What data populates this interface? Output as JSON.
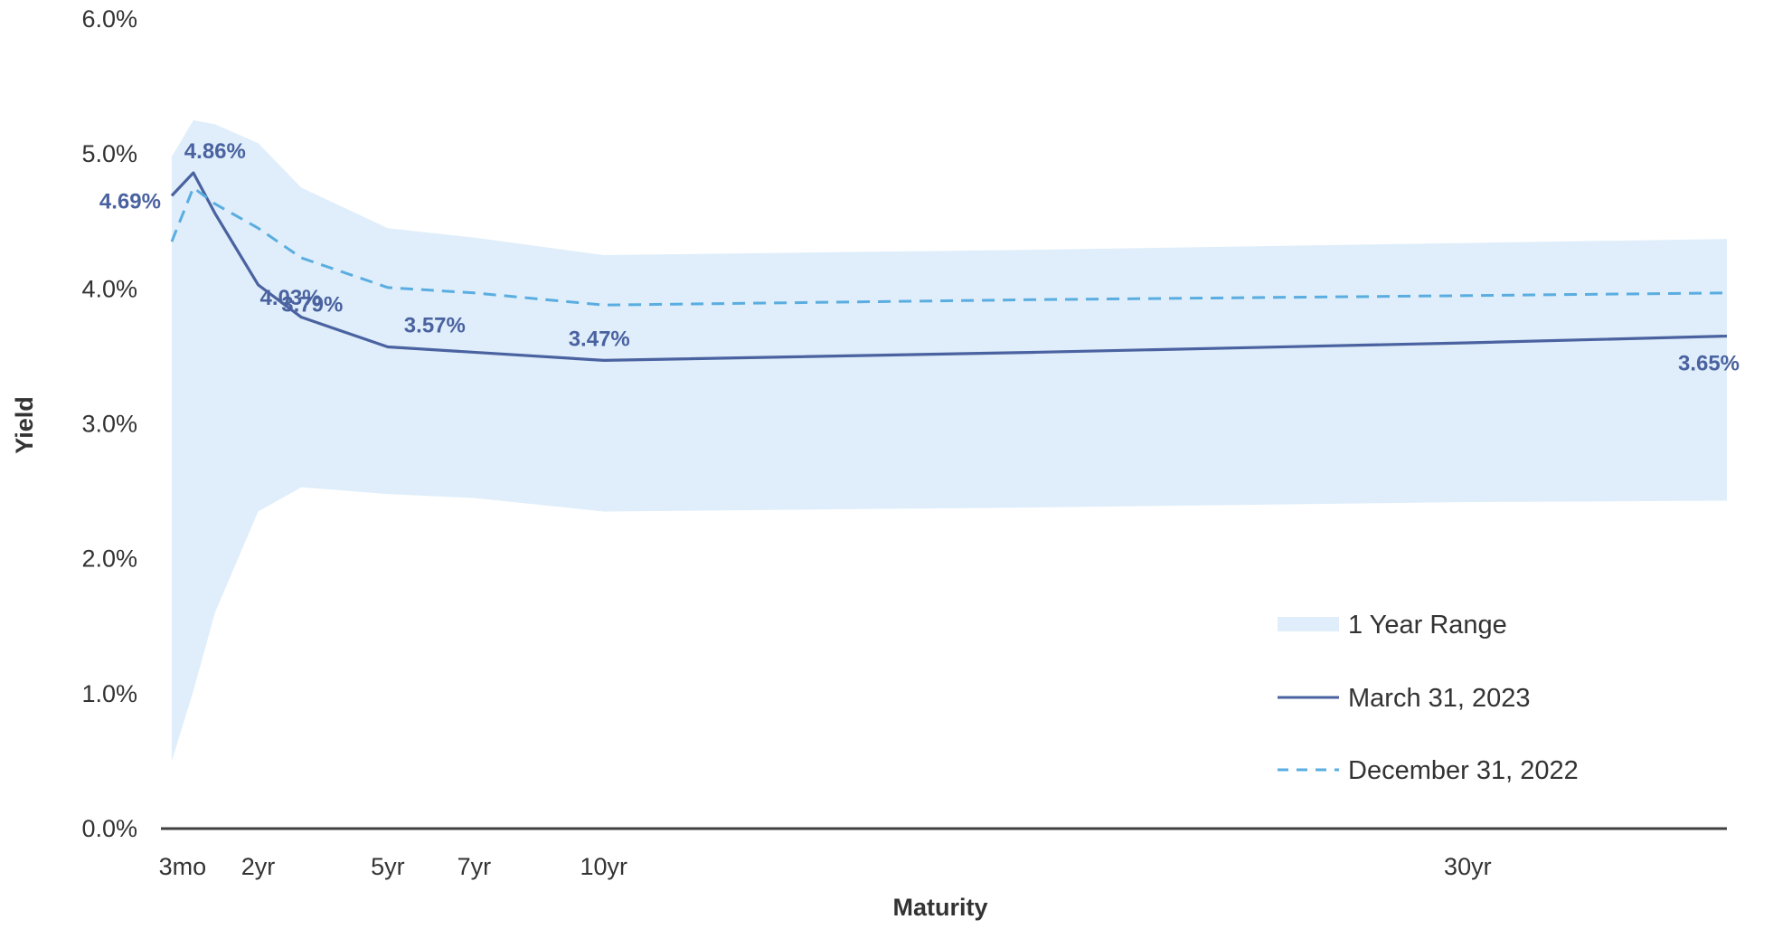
{
  "chart_data": {
    "type": "line",
    "title": "",
    "xlabel": "Maturity",
    "ylabel": "Yield",
    "ylim": [
      0,
      6
    ],
    "y_tick_labels": [
      "0.0%",
      "1.0%",
      "2.0%",
      "3.0%",
      "4.0%",
      "5.0%",
      "6.0%"
    ],
    "y_ticks": [
      0,
      1,
      2,
      3,
      4,
      5,
      6
    ],
    "x_tick_labels": [
      "3mo",
      "2yr",
      "5yr",
      "7yr",
      "10yr",
      "30yr"
    ],
    "x_tick_positions": [
      0.25,
      2,
      5,
      7,
      10,
      30
    ],
    "xlim": [
      -0.25,
      36
    ],
    "x": [
      0,
      0.5,
      1,
      2,
      3,
      5,
      7,
      10,
      20,
      30,
      36
    ],
    "series": [
      {
        "name": "1 Year Range",
        "kind": "area",
        "color": "#DFEEFA",
        "upper": [
          4.98,
          5.25,
          5.22,
          5.08,
          4.75,
          4.45,
          4.38,
          4.25,
          4.29,
          4.34,
          4.37
        ],
        "lower": [
          0.5,
          1.02,
          1.6,
          2.35,
          2.53,
          2.48,
          2.45,
          2.35,
          2.38,
          2.42,
          2.43
        ]
      },
      {
        "name": "March 31, 2023",
        "kind": "line",
        "style": "solid",
        "color": "#4A62A0",
        "values": [
          4.69,
          4.86,
          4.56,
          4.03,
          3.79,
          3.57,
          3.53,
          3.47,
          3.53,
          3.6,
          3.65
        ]
      },
      {
        "name": "December 31, 2022",
        "kind": "line",
        "style": "dashed",
        "color": "#5AADE0",
        "values": [
          4.35,
          4.75,
          4.63,
          4.45,
          4.23,
          4.01,
          3.97,
          3.88,
          3.92,
          3.95,
          3.97
        ]
      }
    ],
    "data_labels": [
      {
        "series": "March 31, 2023",
        "x": 0,
        "value": 4.69,
        "text": "4.69%"
      },
      {
        "series": "March 31, 2023",
        "x": 0.5,
        "value": 4.86,
        "text": "4.86%"
      },
      {
        "series": "March 31, 2023",
        "x": 2,
        "value": 4.03,
        "text": "4.03%"
      },
      {
        "series": "March 31, 2023",
        "x": 3,
        "value": 3.79,
        "text": "3.79%"
      },
      {
        "series": "March 31, 2023",
        "x": 5,
        "value": 3.57,
        "text": "3.57%"
      },
      {
        "series": "March 31, 2023",
        "x": 10,
        "value": 3.47,
        "text": "3.47%"
      },
      {
        "series": "March 31, 2023",
        "x": 36,
        "value": 3.65,
        "text": "3.65%"
      }
    ],
    "legend": {
      "position": "bottom-right",
      "entries": [
        "1 Year Range",
        "March 31, 2023",
        "December 31, 2022"
      ]
    },
    "grid": false
  }
}
